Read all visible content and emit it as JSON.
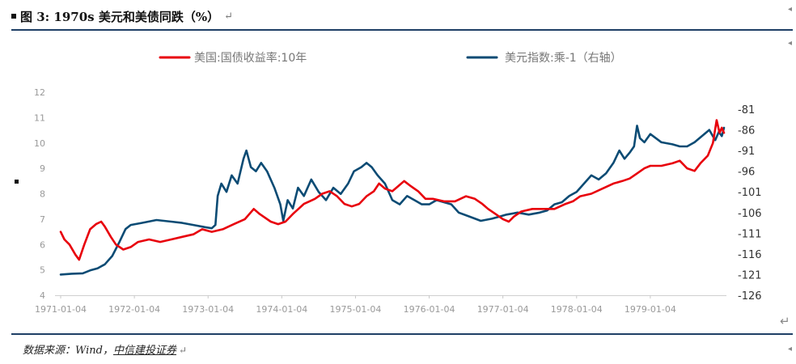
{
  "header": {
    "title": "图 3: 1970s 美元和美债同跌（%）",
    "return_glyph": "↵"
  },
  "footer": {
    "source_prefix": "数据来源：Wind，",
    "source_brand": "中信建投证券",
    "return_glyph": "↵"
  },
  "side": {
    "return_glyph": "↵",
    "edge_glyph": "◂"
  },
  "colors": {
    "rule": "#1f3f66",
    "series_1": "#e8000b",
    "series_2": "#0b4b74"
  },
  "chart_data": {
    "type": "line",
    "title": "",
    "xlabel": "",
    "ylabel": "",
    "x_ticks": [
      "1971-01-04",
      "1972-01-04",
      "1973-01-04",
      "1974-01-04",
      "1975-01-04",
      "1976-01-04",
      "1977-01-04",
      "1978-01-04",
      "1979-01-04"
    ],
    "x_range": [
      1971.0,
      1980.0
    ],
    "left_axis": {
      "ticks": [
        4,
        5,
        6,
        7,
        8,
        9,
        10,
        11,
        12
      ],
      "range": [
        4,
        12
      ]
    },
    "right_axis": {
      "ticks": [
        -81,
        -86,
        -91,
        -96,
        -101,
        -106,
        -111,
        -116,
        -121,
        -126
      ],
      "range": [
        -126,
        -81
      ]
    },
    "legend_position": "top",
    "series": [
      {
        "name": "美国:国债收益率:10年",
        "axis": "left",
        "points": [
          [
            1971.0,
            6.5
          ],
          [
            1971.05,
            6.2
          ],
          [
            1971.12,
            6.0
          ],
          [
            1971.2,
            5.6
          ],
          [
            1971.25,
            5.4
          ],
          [
            1971.32,
            6.0
          ],
          [
            1971.4,
            6.6
          ],
          [
            1971.48,
            6.8
          ],
          [
            1971.55,
            6.9
          ],
          [
            1971.6,
            6.7
          ],
          [
            1971.68,
            6.3
          ],
          [
            1971.75,
            6.0
          ],
          [
            1971.85,
            5.8
          ],
          [
            1971.95,
            5.9
          ],
          [
            1972.05,
            6.1
          ],
          [
            1972.2,
            6.2
          ],
          [
            1972.35,
            6.1
          ],
          [
            1972.5,
            6.2
          ],
          [
            1972.65,
            6.3
          ],
          [
            1972.8,
            6.4
          ],
          [
            1972.92,
            6.6
          ],
          [
            1973.05,
            6.5
          ],
          [
            1973.2,
            6.6
          ],
          [
            1973.35,
            6.8
          ],
          [
            1973.5,
            7.0
          ],
          [
            1973.62,
            7.4
          ],
          [
            1973.7,
            7.2
          ],
          [
            1973.85,
            6.9
          ],
          [
            1973.95,
            6.8
          ],
          [
            1974.05,
            6.9
          ],
          [
            1974.15,
            7.2
          ],
          [
            1974.3,
            7.6
          ],
          [
            1974.45,
            7.8
          ],
          [
            1974.55,
            8.0
          ],
          [
            1974.65,
            8.1
          ],
          [
            1974.75,
            7.9
          ],
          [
            1974.85,
            7.6
          ],
          [
            1974.95,
            7.5
          ],
          [
            1975.05,
            7.6
          ],
          [
            1975.15,
            7.9
          ],
          [
            1975.25,
            8.1
          ],
          [
            1975.32,
            8.4
          ],
          [
            1975.4,
            8.2
          ],
          [
            1975.5,
            8.1
          ],
          [
            1975.58,
            8.3
          ],
          [
            1975.66,
            8.5
          ],
          [
            1975.75,
            8.3
          ],
          [
            1975.85,
            8.1
          ],
          [
            1975.95,
            7.8
          ],
          [
            1976.05,
            7.8
          ],
          [
            1976.2,
            7.7
          ],
          [
            1976.35,
            7.7
          ],
          [
            1976.5,
            7.9
          ],
          [
            1976.62,
            7.8
          ],
          [
            1976.72,
            7.6
          ],
          [
            1976.8,
            7.4
          ],
          [
            1976.9,
            7.2
          ],
          [
            1977.0,
            7.0
          ],
          [
            1977.08,
            6.9
          ],
          [
            1977.15,
            7.1
          ],
          [
            1977.25,
            7.3
          ],
          [
            1977.4,
            7.4
          ],
          [
            1977.55,
            7.4
          ],
          [
            1977.7,
            7.4
          ],
          [
            1977.85,
            7.6
          ],
          [
            1977.95,
            7.7
          ],
          [
            1978.05,
            7.9
          ],
          [
            1978.2,
            8.0
          ],
          [
            1978.35,
            8.2
          ],
          [
            1978.5,
            8.4
          ],
          [
            1978.62,
            8.5
          ],
          [
            1978.72,
            8.6
          ],
          [
            1978.82,
            8.8
          ],
          [
            1978.92,
            9.0
          ],
          [
            1979.0,
            9.1
          ],
          [
            1979.15,
            9.1
          ],
          [
            1979.3,
            9.2
          ],
          [
            1979.4,
            9.3
          ],
          [
            1979.5,
            9.0
          ],
          [
            1979.6,
            8.9
          ],
          [
            1979.68,
            9.2
          ],
          [
            1979.78,
            9.5
          ],
          [
            1979.85,
            10.0
          ],
          [
            1979.9,
            10.9
          ],
          [
            1979.94,
            10.4
          ],
          [
            1979.97,
            10.6
          ],
          [
            1980.0,
            10.4
          ]
        ]
      },
      {
        "name": "美元指数:乘-1（右轴）",
        "axis": "right",
        "points": [
          [
            1971.0,
            -121.0
          ],
          [
            1971.15,
            -120.8
          ],
          [
            1971.3,
            -120.7
          ],
          [
            1971.4,
            -120.0
          ],
          [
            1971.5,
            -119.5
          ],
          [
            1971.6,
            -118.5
          ],
          [
            1971.7,
            -116.5
          ],
          [
            1971.8,
            -113.0
          ],
          [
            1971.88,
            -110.0
          ],
          [
            1971.95,
            -109.0
          ],
          [
            1972.1,
            -108.5
          ],
          [
            1972.3,
            -107.8
          ],
          [
            1972.5,
            -108.2
          ],
          [
            1972.65,
            -108.5
          ],
          [
            1972.8,
            -109.0
          ],
          [
            1972.95,
            -109.5
          ],
          [
            1973.05,
            -109.8
          ],
          [
            1973.1,
            -109.0
          ],
          [
            1973.13,
            -102.0
          ],
          [
            1973.18,
            -99.0
          ],
          [
            1973.25,
            -101.0
          ],
          [
            1973.32,
            -97.0
          ],
          [
            1973.4,
            -99.0
          ],
          [
            1973.48,
            -93.0
          ],
          [
            1973.52,
            -91.0
          ],
          [
            1973.58,
            -95.0
          ],
          [
            1973.65,
            -96.0
          ],
          [
            1973.72,
            -94.0
          ],
          [
            1973.8,
            -96.0
          ],
          [
            1973.9,
            -100.0
          ],
          [
            1973.98,
            -104.0
          ],
          [
            1974.02,
            -108.0
          ],
          [
            1974.08,
            -103.0
          ],
          [
            1974.15,
            -105.0
          ],
          [
            1974.22,
            -100.0
          ],
          [
            1974.3,
            -102.0
          ],
          [
            1974.4,
            -98.0
          ],
          [
            1974.5,
            -101.0
          ],
          [
            1974.6,
            -103.0
          ],
          [
            1974.7,
            -100.0
          ],
          [
            1974.8,
            -101.5
          ],
          [
            1974.9,
            -99.0
          ],
          [
            1974.98,
            -96.0
          ],
          [
            1975.08,
            -95.0
          ],
          [
            1975.15,
            -94.0
          ],
          [
            1975.22,
            -95.0
          ],
          [
            1975.3,
            -97.0
          ],
          [
            1975.4,
            -99.0
          ],
          [
            1975.5,
            -103.0
          ],
          [
            1975.6,
            -104.0
          ],
          [
            1975.7,
            -102.0
          ],
          [
            1975.8,
            -103.0
          ],
          [
            1975.9,
            -104.0
          ],
          [
            1976.0,
            -104.0
          ],
          [
            1976.1,
            -103.0
          ],
          [
            1976.2,
            -103.5
          ],
          [
            1976.3,
            -104.0
          ],
          [
            1976.4,
            -106.0
          ],
          [
            1976.55,
            -107.0
          ],
          [
            1976.7,
            -108.0
          ],
          [
            1976.85,
            -107.5
          ],
          [
            1976.95,
            -107.0
          ],
          [
            1977.05,
            -106.5
          ],
          [
            1977.2,
            -106.0
          ],
          [
            1977.35,
            -106.5
          ],
          [
            1977.5,
            -106.0
          ],
          [
            1977.6,
            -105.5
          ],
          [
            1977.7,
            -104.0
          ],
          [
            1977.8,
            -103.5
          ],
          [
            1977.9,
            -102.0
          ],
          [
            1978.0,
            -101.0
          ],
          [
            1978.1,
            -99.0
          ],
          [
            1978.2,
            -97.0
          ],
          [
            1978.3,
            -98.0
          ],
          [
            1978.4,
            -96.5
          ],
          [
            1978.5,
            -94.0
          ],
          [
            1978.58,
            -91.0
          ],
          [
            1978.65,
            -93.0
          ],
          [
            1978.72,
            -91.5
          ],
          [
            1978.78,
            -90.0
          ],
          [
            1978.82,
            -85.0
          ],
          [
            1978.86,
            -88.0
          ],
          [
            1978.92,
            -89.0
          ],
          [
            1979.0,
            -87.0
          ],
          [
            1979.15,
            -89.0
          ],
          [
            1979.3,
            -89.5
          ],
          [
            1979.4,
            -90.0
          ],
          [
            1979.5,
            -90.0
          ],
          [
            1979.6,
            -89.0
          ],
          [
            1979.7,
            -87.5
          ],
          [
            1979.8,
            -86.0
          ],
          [
            1979.88,
            -88.5
          ],
          [
            1979.93,
            -86.5
          ],
          [
            1979.97,
            -87.5
          ],
          [
            1980.0,
            -85.5
          ]
        ]
      }
    ]
  }
}
